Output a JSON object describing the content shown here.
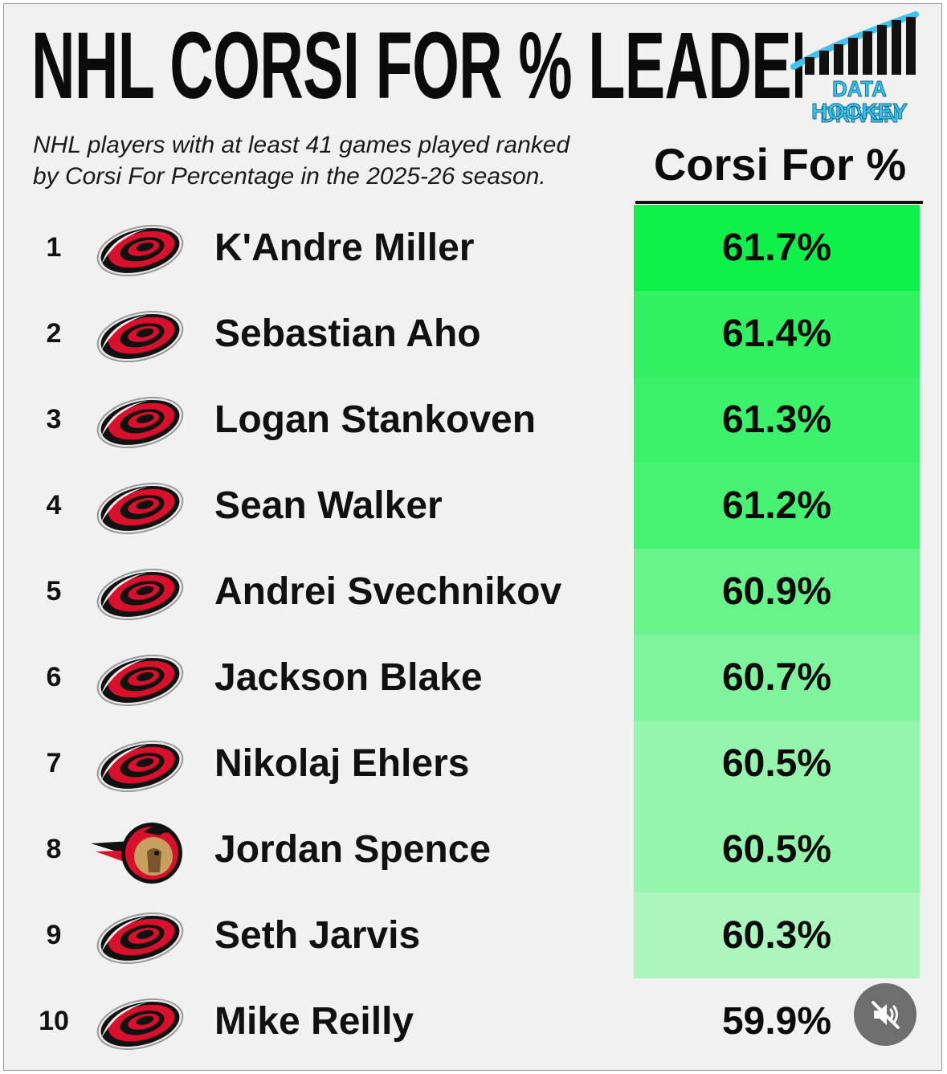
{
  "title": "NHL CORSI FOR % LEADERS",
  "subtitle_line1": "NHL players with at least 41 games played ranked",
  "subtitle_line2": "by Corsi For Percentage in the 2025-26 season.",
  "brand": {
    "line1": "DATA DRIVEN",
    "line2": "HOCKEY",
    "color": "#38c5f0"
  },
  "icons": {
    "team_logo_a": "hurricanes-logo-icon",
    "team_logo_b": "senators-logo-icon",
    "mute": "mute-speaker-icon"
  },
  "colors": {
    "high": "#0ff048",
    "low": "#d9f7df",
    "text": "#0b0b0b"
  },
  "chart_data": {
    "type": "table",
    "title": "NHL CORSI FOR % LEADERS",
    "column_header": "Corsi For %",
    "rows": [
      {
        "rank": "1",
        "player": "K'Andre Miller",
        "team_logo": "hurricanes",
        "value": 61.7,
        "label": "61.7%"
      },
      {
        "rank": "2",
        "player": "Sebastian Aho",
        "team_logo": "hurricanes",
        "value": 61.4,
        "label": "61.4%"
      },
      {
        "rank": "3",
        "player": "Logan Stankoven",
        "team_logo": "hurricanes",
        "value": 61.3,
        "label": "61.3%"
      },
      {
        "rank": "4",
        "player": "Sean Walker",
        "team_logo": "hurricanes",
        "value": 61.2,
        "label": "61.2%"
      },
      {
        "rank": "5",
        "player": "Andrei Svechnikov",
        "team_logo": "hurricanes",
        "value": 60.9,
        "label": "60.9%"
      },
      {
        "rank": "6",
        "player": "Jackson Blake",
        "team_logo": "hurricanes",
        "value": 60.7,
        "label": "60.7%"
      },
      {
        "rank": "7",
        "player": "Nikolaj Ehlers",
        "team_logo": "hurricanes",
        "value": 60.5,
        "label": "60.5%"
      },
      {
        "rank": "8",
        "player": "Jordan Spence",
        "team_logo": "senators",
        "value": 60.5,
        "label": "60.5%"
      },
      {
        "rank": "9",
        "player": "Seth Jarvis",
        "team_logo": "hurricanes",
        "value": 60.3,
        "label": "60.3%"
      },
      {
        "rank": "10",
        "player": "Mike Reilly",
        "team_logo": "hurricanes",
        "value": 59.9,
        "label": "59.9%"
      }
    ]
  }
}
